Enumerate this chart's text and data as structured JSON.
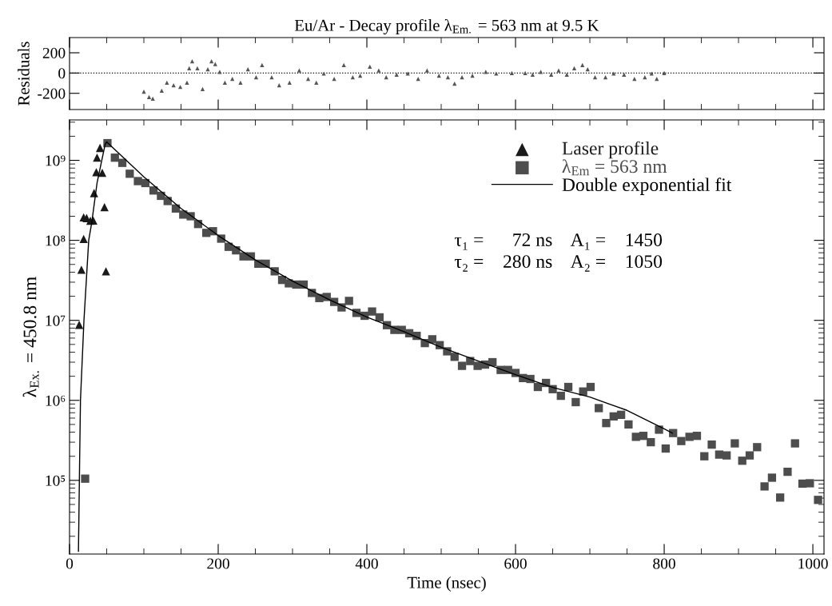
{
  "chart_data": [
    {
      "type": "scatter",
      "title": "Eu/Ar - Decay profile λ$_{Em.}$ = 563 nm at 9.5 K",
      "ylabel": "Residuals",
      "xlim": [
        0,
        1015
      ],
      "xticks": [
        0,
        200,
        400,
        600,
        800,
        1000
      ],
      "ylim": [
        -360,
        350
      ],
      "yticks": [
        -200,
        0,
        200
      ],
      "tick_labels": "y",
      "grid": false,
      "legend": false,
      "ref_lines": [
        {
          "axis": "y",
          "value": 0,
          "line_style": "dotted",
          "color": "#000000"
        }
      ],
      "series": [
        {
          "marker": "triangle",
          "color": "#555555",
          "x": [
            100,
            107,
            112,
            124,
            131,
            140,
            149,
            158,
            161,
            165,
            172,
            179,
            186,
            191,
            196,
            202,
            209,
            219,
            230,
            240,
            251,
            259,
            272,
            282,
            296,
            309,
            321,
            332,
            342,
            356,
            369,
            381,
            391,
            404,
            416,
            426,
            440,
            455,
            469,
            481,
            497,
            509,
            518,
            528,
            542,
            560,
            574,
            595,
            613,
            623,
            634,
            648,
            658,
            669,
            679,
            690,
            697,
            707,
            721,
            732,
            746,
            760,
            774,
            783,
            790,
            800
          ],
          "values": [
            -184,
            -237,
            -253,
            -174,
            -95,
            -121,
            -137,
            -95,
            47,
            116,
            47,
            -158,
            37,
            116,
            89,
            11,
            -95,
            -58,
            -95,
            37,
            -42,
            79,
            -42,
            -121,
            -95,
            26,
            -58,
            -95,
            -5,
            -58,
            79,
            -42,
            -26,
            63,
            26,
            -42,
            -16,
            -5,
            -58,
            26,
            -26,
            -42,
            -105,
            -42,
            -26,
            11,
            -5,
            0,
            0,
            -16,
            11,
            -16,
            26,
            -16,
            47,
            79,
            37,
            -42,
            -42,
            -5,
            -16,
            -58,
            -42,
            -5,
            -58,
            0
          ]
        }
      ]
    },
    {
      "type": "scatter",
      "xlabel": "Time (nsec)",
      "ylabel": "λ$_{Ex.}$ = 450.8 nm",
      "log": "y",
      "xlim": [
        0,
        1015
      ],
      "xticks": [
        0,
        200,
        400,
        600,
        800,
        1000
      ],
      "ylim": [
        12000.0,
        3200000000.0
      ],
      "yticks": [
        {
          "value": 100000.0,
          "label": "10⁵"
        },
        {
          "value": 1000000.0,
          "label": "10⁶"
        },
        {
          "value": 10000000.0,
          "label": "10⁷"
        },
        {
          "value": 100000000.0,
          "label": "10⁸"
        },
        {
          "value": 1000000000.0,
          "label": "10⁹"
        }
      ],
      "grid": false,
      "legend": "top right",
      "annotations": [
        "τ₁ =      72 ns    A₁ =    1450",
        "τ₂ =    280 ns    A₂ =    1050"
      ],
      "series": [
        {
          "name": "Laser profile",
          "marker": "triangle",
          "color": "#1a1a1a",
          "x": [
            13,
            16,
            19,
            19,
            23,
            28,
            32,
            33,
            36,
            37,
            41,
            44,
            47,
            49
          ],
          "values": [
            8800000.0,
            43000000.0,
            104000000.0,
            194000000.0,
            190000000.0,
            176000000.0,
            177000000.0,
            390000000.0,
            710000000.0,
            1080000000.0,
            1430000000.0,
            700000000.0,
            260000000.0,
            41000000.0
          ]
        },
        {
          "name": "λ$_{Em}$ = 563 nm",
          "marker": "square",
          "color": "#4d4d4d",
          "x": [
            21,
            51,
            61,
            71,
            81,
            92,
            102,
            113,
            123,
            132,
            143,
            153,
            163,
            173,
            184,
            193,
            204,
            214,
            224,
            234,
            244,
            254,
            264,
            276,
            286,
            295,
            305,
            315,
            326,
            336,
            346,
            356,
            366,
            376,
            386,
            397,
            407,
            417,
            427,
            437,
            447,
            457,
            467,
            478,
            488,
            498,
            508,
            518,
            528,
            539,
            549,
            559,
            569,
            580,
            590,
            600,
            610,
            620,
            630,
            641,
            650,
            661,
            671,
            681,
            691,
            701,
            712,
            722,
            732,
            742,
            752,
            762,
            772,
            782,
            793,
            802,
            812,
            823,
            834,
            844,
            854,
            864,
            874,
            884,
            895,
            905,
            915,
            925,
            935,
            945,
            956,
            966,
            976,
            986,
            996,
            1007
          ],
          "values": [
            105000.0,
            1640000000.0,
            1080000000.0,
            930000000.0,
            680000000.0,
            550000000.0,
            520000000.0,
            420000000.0,
            360000000.0,
            310000000.0,
            250000000.0,
            210000000.0,
            200000000.0,
            160000000.0,
            124000000.0,
            130000000.0,
            105000000.0,
            83000000.0,
            75000000.0,
            63000000.0,
            63000000.0,
            51000000.0,
            51000000.0,
            41000000.0,
            32000000.0,
            29000000.0,
            28000000.0,
            28000000.0,
            22000000.0,
            19000000.0,
            19600000.0,
            17000000.0,
            14500000.0,
            17500000.0,
            12400000.0,
            11400000.0,
            12900000.0,
            10900000.0,
            8700000.0,
            7600000.0,
            7600000.0,
            6900000.0,
            6400000.0,
            5200000.0,
            5800000.0,
            4900000.0,
            4100000.0,
            3500000.0,
            2700000.0,
            3100000.0,
            2700000.0,
            2800000.0,
            3000000.0,
            2400000.0,
            2400000.0,
            2200000.0,
            1900000.0,
            1850000.0,
            1470000.0,
            1650000.0,
            1380000.0,
            1140000.0,
            1470000.0,
            950000.0,
            1290000.0,
            1470000.0,
            800000.0,
            520000.0,
            630000.0,
            660000.0,
            500000.0,
            350000.0,
            360000.0,
            300000.0,
            430000.0,
            250000.0,
            390000.0,
            310000.0,
            350000.0,
            360000.0,
            200000.0,
            280000.0,
            210000.0,
            205000.0,
            290000.0,
            176000.0,
            205000.0,
            260000.0,
            84000.0,
            108000.0,
            61000.0,
            128000.0,
            290000.0,
            91000.0,
            92000.0,
            57000.0
          ]
        },
        {
          "name": "Double exponential fit",
          "type": "line",
          "marker": "none",
          "line_style": "solid",
          "color": "#000000",
          "x": [
            12,
            13.6,
            14.7,
            19.4,
            25.8,
            30,
            37,
            48,
            50,
            100,
            150,
            200,
            250,
            300,
            350,
            400,
            450,
            500,
            550,
            600,
            650,
            700,
            750,
            800,
            811
          ],
          "values": [
            13000.0,
            180000.0,
            1000000.0,
            10000000.0,
            100000000.0,
            170000000.0,
            520000000.0,
            1600000000.0,
            1700000000.0,
            620000000.0,
            250000000.0,
            115000000.0,
            57000000.0,
            31000000.0,
            18000000.0,
            11000000.0,
            7200000.0,
            4600000.0,
            3100000.0,
            2100000.0,
            1450000.0,
            1100000.0,
            750000.0,
            440000.0,
            390000.0
          ]
        }
      ]
    }
  ]
}
